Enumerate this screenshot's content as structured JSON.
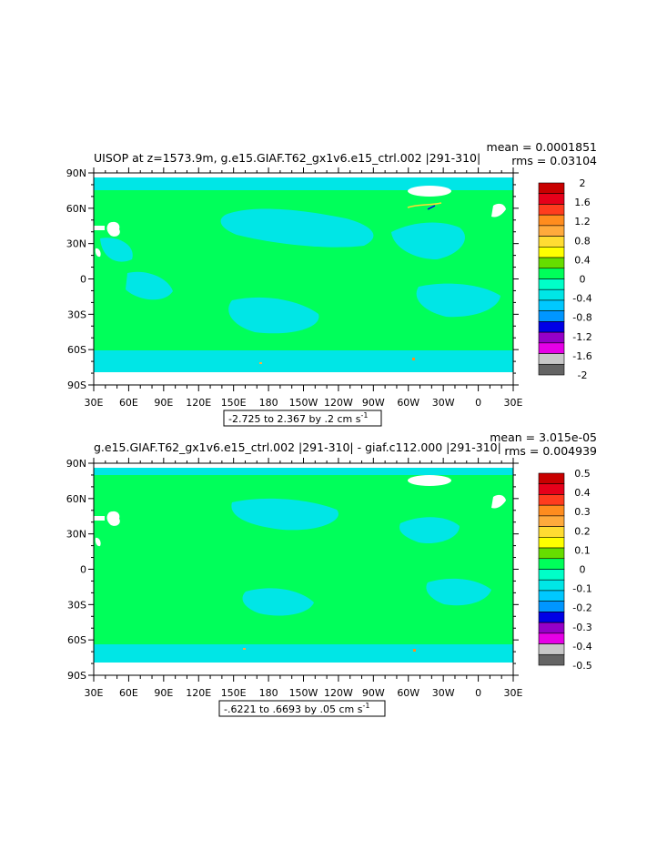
{
  "chart_data": [
    {
      "type": "heatmap",
      "title": "UISOP at z=1573.9m, g.e15.GIAF.T62_gx1v6.e15_ctrl.002  |291-310|",
      "stats": {
        "mean": "mean = 0.0001851",
        "rms": "rms = 0.03104"
      },
      "range_label": "-2.725 to 2.367 by .2 cm s",
      "range_label_exp": "-1",
      "y_ticks": [
        "90N",
        "60N",
        "30N",
        "0",
        "30S",
        "60S",
        "90S"
      ],
      "x_ticks": [
        "30E",
        "60E",
        "90E",
        "120E",
        "150E",
        "180",
        "150W",
        "120W",
        "90W",
        "60W",
        "30W",
        "0",
        "30E"
      ],
      "colorbar_labels": [
        "2",
        "1.6",
        "1.2",
        "0.8",
        "0.4",
        "0",
        "-0.4",
        "-0.8",
        "-1.2",
        "-1.6",
        "-2"
      ],
      "colorbar_colors": [
        "#c80000",
        "#e6001a",
        "#ff3c1e",
        "#ff8c1e",
        "#ffaa3c",
        "#ffdc32",
        "#ffff00",
        "#66dd00",
        "#00ff5a",
        "#00ffc8",
        "#00e6e6",
        "#00c8ff",
        "#0096ff",
        "#0000e6",
        "#9600c8",
        "#e600e6",
        "#c8c8c8",
        "#646464"
      ],
      "dominant_colors": {
        "ocean": "#00ff5a",
        "negative": "#00e6e6"
      }
    },
    {
      "type": "heatmap",
      "title": "g.e15.GIAF.T62_gx1v6.e15_ctrl.002  |291-310|  -  giaf.c112.000  |291-310|",
      "stats": {
        "mean": "mean = 3.015e-05",
        "rms": "rms = 0.004939"
      },
      "range_label": "-.6221 to .6693 by .05 cm s",
      "range_label_exp": "-1",
      "y_ticks": [
        "90N",
        "60N",
        "30N",
        "0",
        "30S",
        "60S",
        "90S"
      ],
      "x_ticks": [
        "30E",
        "60E",
        "90E",
        "120E",
        "150E",
        "180",
        "150W",
        "120W",
        "90W",
        "60W",
        "30W",
        "0",
        "30E"
      ],
      "colorbar_labels": [
        "0.5",
        "0.4",
        "0.3",
        "0.2",
        "0.1",
        "0",
        "-0.1",
        "-0.2",
        "-0.3",
        "-0.4",
        "-0.5"
      ],
      "colorbar_colors": [
        "#c80000",
        "#e6001a",
        "#ff3c1e",
        "#ff8c1e",
        "#ffaa3c",
        "#ffdc32",
        "#ffff00",
        "#66dd00",
        "#00ff5a",
        "#00ffc8",
        "#00e6e6",
        "#00c8ff",
        "#0096ff",
        "#0000e6",
        "#9600c8",
        "#e600e6",
        "#c8c8c8",
        "#646464"
      ],
      "dominant_colors": {
        "ocean": "#00ff5a",
        "negative": "#00e6e6"
      }
    }
  ]
}
